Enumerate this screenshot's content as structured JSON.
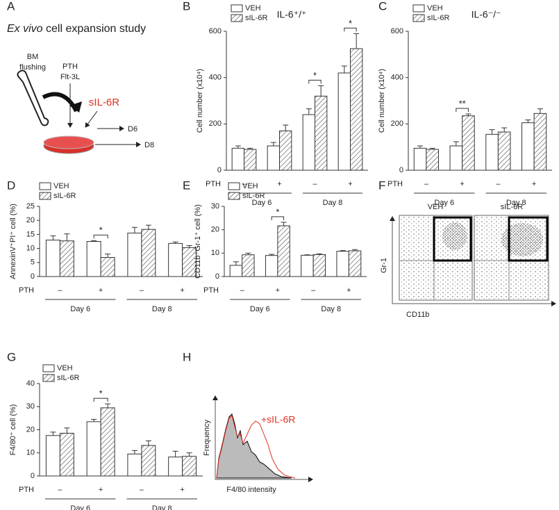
{
  "panel_a": {
    "panel": "A",
    "title_italic": "Ex vivo",
    "title_rest": "cell expansion study",
    "bm": "BM",
    "flushing": "flushing",
    "pth": "PTH",
    "flt": "Flt-3L",
    "sil": "sIL-6R",
    "d6": "D6",
    "d8": "D8"
  },
  "chart_data": [
    {
      "type": "bar",
      "panel": "B",
      "title": "IL-6⁺/⁺",
      "y_label": "Cell number (x10⁴)",
      "x_row_label": "PTH",
      "categories": [
        "–",
        "+",
        "–",
        "+"
      ],
      "groups": [
        "Day 6",
        "Day 8"
      ],
      "series": [
        {
          "name": "VEH",
          "color": "#ffffff",
          "values": [
            95,
            105,
            240,
            420
          ],
          "errors": [
            10,
            15,
            25,
            30
          ]
        },
        {
          "name": "sIL-6R",
          "color": "#ffffff",
          "pattern": "hatch",
          "values": [
            90,
            170,
            320,
            525
          ],
          "errors": [
            5,
            25,
            45,
            65
          ]
        }
      ],
      "significance": [
        null,
        null,
        "*",
        "*"
      ],
      "ylim": [
        0,
        600
      ],
      "yticks": [
        0,
        200,
        400,
        600
      ]
    },
    {
      "type": "bar",
      "panel": "C",
      "title": "IL-6⁻/⁻",
      "y_label": "Cell number (x10⁴)",
      "x_row_label": "PTH",
      "categories": [
        "–",
        "+",
        "–",
        "+"
      ],
      "groups": [
        "Day 6",
        "Day 8"
      ],
      "series": [
        {
          "name": "VEH",
          "color": "#ffffff",
          "values": [
            95,
            105,
            155,
            205
          ],
          "errors": [
            10,
            18,
            20,
            12
          ]
        },
        {
          "name": "sIL-6R",
          "color": "#ffffff",
          "pattern": "hatch",
          "values": [
            90,
            235,
            165,
            245
          ],
          "errors": [
            5,
            8,
            18,
            20
          ]
        }
      ],
      "significance": [
        null,
        "**",
        null,
        null
      ],
      "ylim": [
        0,
        600
      ],
      "yticks": [
        0,
        200,
        400,
        600
      ]
    },
    {
      "type": "bar",
      "panel": "D",
      "y_label": "AnnexinV⁺PI⁺ cell (%)",
      "x_row_label": "PTH",
      "categories": [
        "–",
        "+",
        "–",
        "+"
      ],
      "groups": [
        "Day 6",
        "Day 8"
      ],
      "series": [
        {
          "name": "VEH",
          "color": "#ffffff",
          "values": [
            13,
            12.5,
            15.5,
            11.8
          ],
          "errors": [
            1.5,
            0.3,
            2,
            0.5
          ]
        },
        {
          "name": "sIL-6R",
          "color": "#ffffff",
          "pattern": "hatch",
          "values": [
            12.7,
            6.8,
            16.8,
            10.3
          ],
          "errors": [
            2.5,
            1.2,
            1.5,
            0.7
          ]
        }
      ],
      "significance": [
        null,
        "*",
        null,
        null
      ],
      "ylim": [
        0,
        25
      ],
      "yticks": [
        0,
        5,
        10,
        15,
        20,
        25
      ]
    },
    {
      "type": "bar",
      "panel": "E",
      "y_label": "CD11b⁺Gr-1⁺ cell (%)",
      "x_row_label": "PTH",
      "categories": [
        "–",
        "+",
        "–",
        "+"
      ],
      "groups": [
        "Day 6",
        "Day 8"
      ],
      "series": [
        {
          "name": "VEH",
          "color": "#ffffff",
          "values": [
            4.8,
            9,
            9.1,
            10.8
          ],
          "errors": [
            1.5,
            0.5,
            0.2,
            0.3
          ]
        },
        {
          "name": "sIL-6R",
          "color": "#ffffff",
          "pattern": "hatch",
          "values": [
            9.3,
            21.7,
            9.4,
            11
          ],
          "errors": [
            0.7,
            1.5,
            0.3,
            0.5
          ]
        }
      ],
      "significance": [
        null,
        "*",
        null,
        null
      ],
      "ylim": [
        0,
        30
      ],
      "yticks": [
        0,
        10,
        20,
        30
      ]
    },
    {
      "type": "bar",
      "panel": "G",
      "y_label": "F4/80⁺ cell (%)",
      "x_row_label": "PTH",
      "categories": [
        "–",
        "+",
        "–",
        "+"
      ],
      "groups": [
        "Day 6",
        "Day 8"
      ],
      "series": [
        {
          "name": "VEH",
          "color": "#ffffff",
          "values": [
            17.5,
            23.5,
            9.5,
            8.2
          ],
          "errors": [
            1.5,
            1,
            1.5,
            2.5
          ]
        },
        {
          "name": "sIL-6R",
          "color": "#ffffff",
          "pattern": "hatch",
          "values": [
            18.5,
            29.5,
            13.2,
            8.5
          ],
          "errors": [
            2.3,
            1.7,
            2,
            1.5
          ]
        }
      ],
      "significance": [
        null,
        "*",
        null,
        null
      ],
      "ylim": [
        0,
        40
      ],
      "yticks": [
        0,
        10,
        20,
        30,
        40
      ]
    }
  ],
  "panel_f": {
    "panel": "F",
    "left": "VEH",
    "right": "sIL-6R",
    "y_label": "Gr-1",
    "x_label": "CD11b"
  },
  "panel_h": {
    "panel": "H",
    "y_label": "Frequency",
    "x_label": "F4/80 intensity",
    "annotation": "+sIL-6R"
  }
}
